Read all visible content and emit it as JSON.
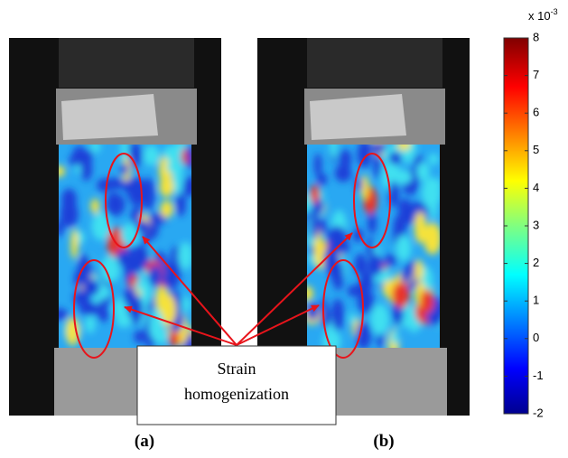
{
  "panels": [
    {
      "label": "(a)"
    },
    {
      "label": "(b)"
    }
  ],
  "annotation": {
    "lines": [
      "Strain",
      "homogenization"
    ]
  },
  "colorbar": {
    "range": [
      -2,
      8
    ],
    "ticks": [
      -2,
      -1,
      0,
      1,
      2,
      3,
      4,
      5,
      6,
      7,
      8
    ],
    "multiplier": {
      "base": "x 10",
      "exponent": "-3"
    }
  }
}
